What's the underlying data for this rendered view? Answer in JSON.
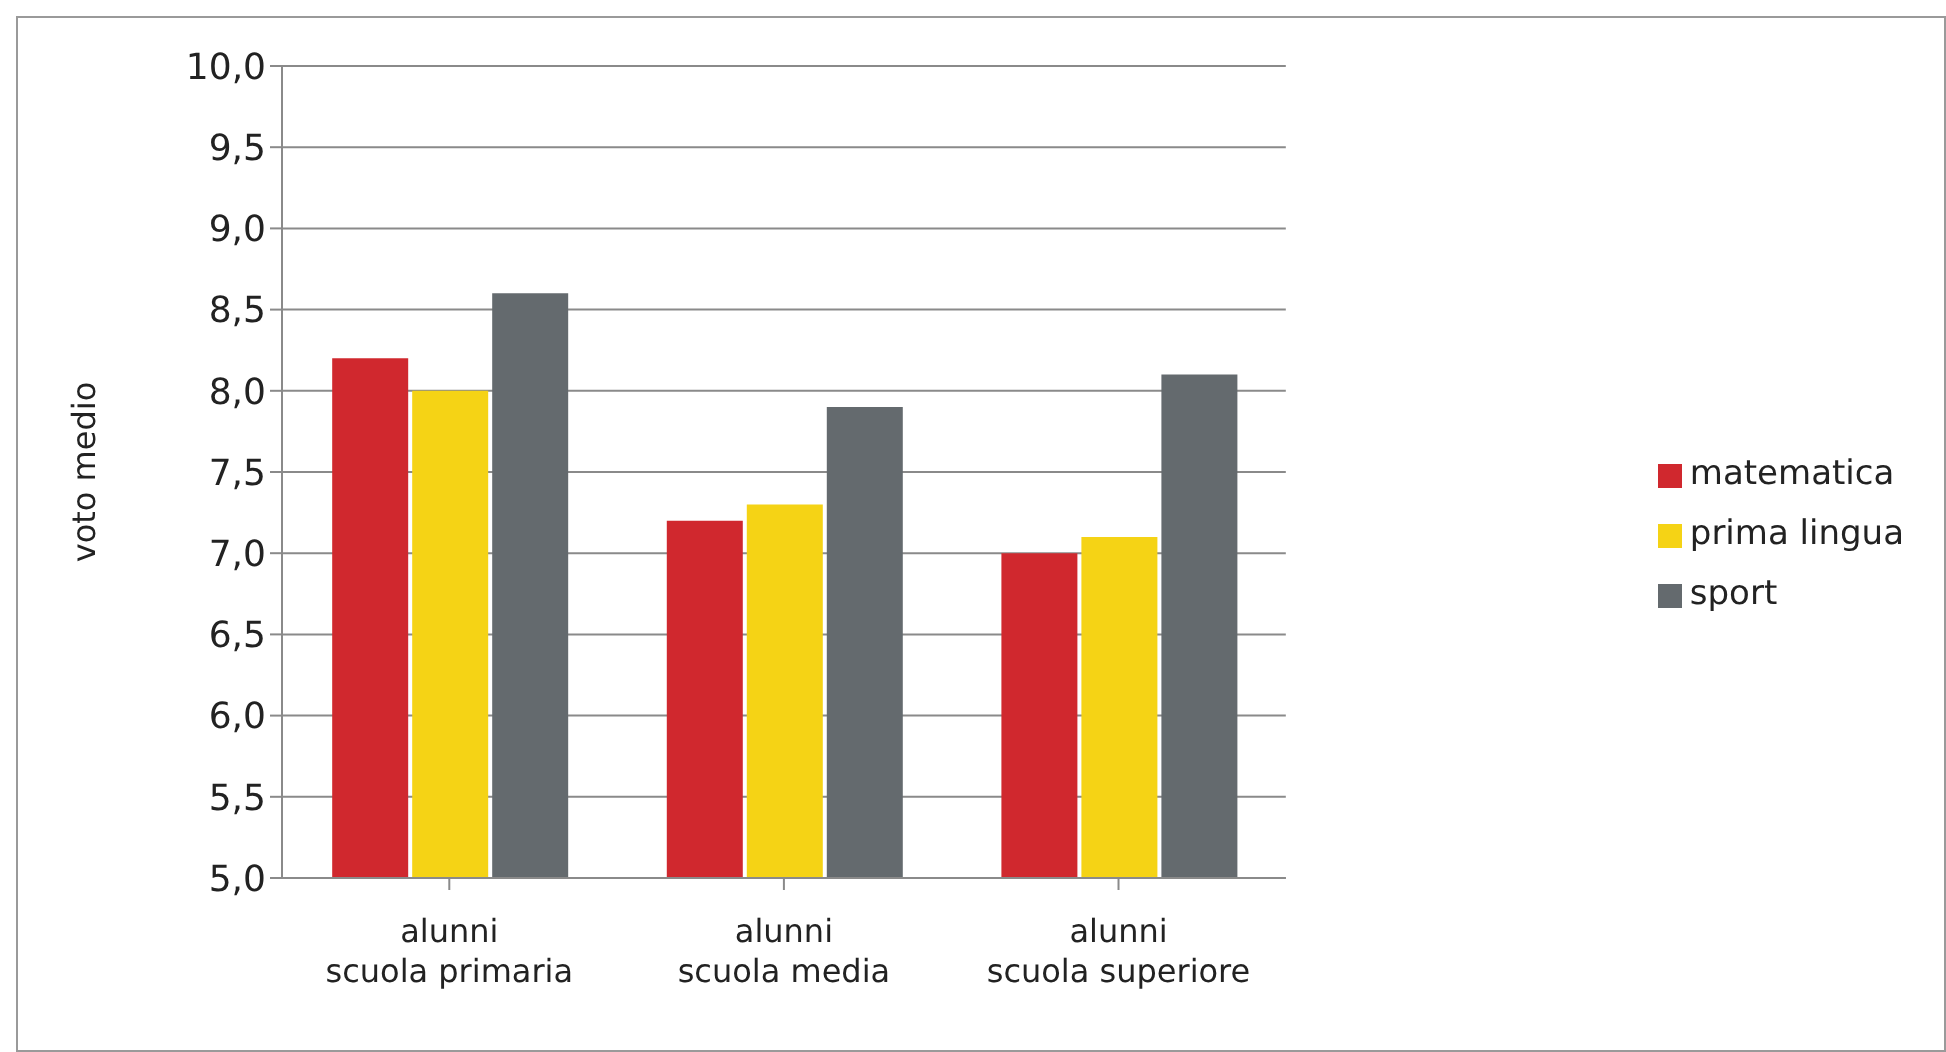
{
  "chart_data": {
    "type": "bar",
    "ylabel": "voto medio",
    "categories": [
      "alunni\nscuola primaria",
      "alunni\nscuola media",
      "alunni\nscuola superiore"
    ],
    "series": [
      {
        "name": "matematica",
        "color": "#d0282e",
        "values": [
          8.2,
          7.2,
          7.0
        ]
      },
      {
        "name": "prima lingua",
        "color": "#f5d315",
        "values": [
          8.0,
          7.3,
          7.1
        ]
      },
      {
        "name": "sport",
        "color": "#646a6e",
        "values": [
          8.6,
          7.9,
          8.1
        ]
      }
    ],
    "ylim": [
      5,
      10
    ],
    "yticks": [
      {
        "value": 5,
        "label": "5,0"
      },
      {
        "value": 5.5,
        "label": "5,5"
      },
      {
        "value": 6,
        "label": "6,0"
      },
      {
        "value": 6.5,
        "label": "6,5"
      },
      {
        "value": 7,
        "label": "7,0"
      },
      {
        "value": 7.5,
        "label": "7,5"
      },
      {
        "value": 8,
        "label": "8,0"
      },
      {
        "value": 8.5,
        "label": "8,5"
      },
      {
        "value": 9,
        "label": "9,0"
      },
      {
        "value": 9.5,
        "label": "9,5"
      },
      {
        "value": 10,
        "label": "10,0"
      }
    ],
    "grid": "y",
    "legend": "right"
  }
}
